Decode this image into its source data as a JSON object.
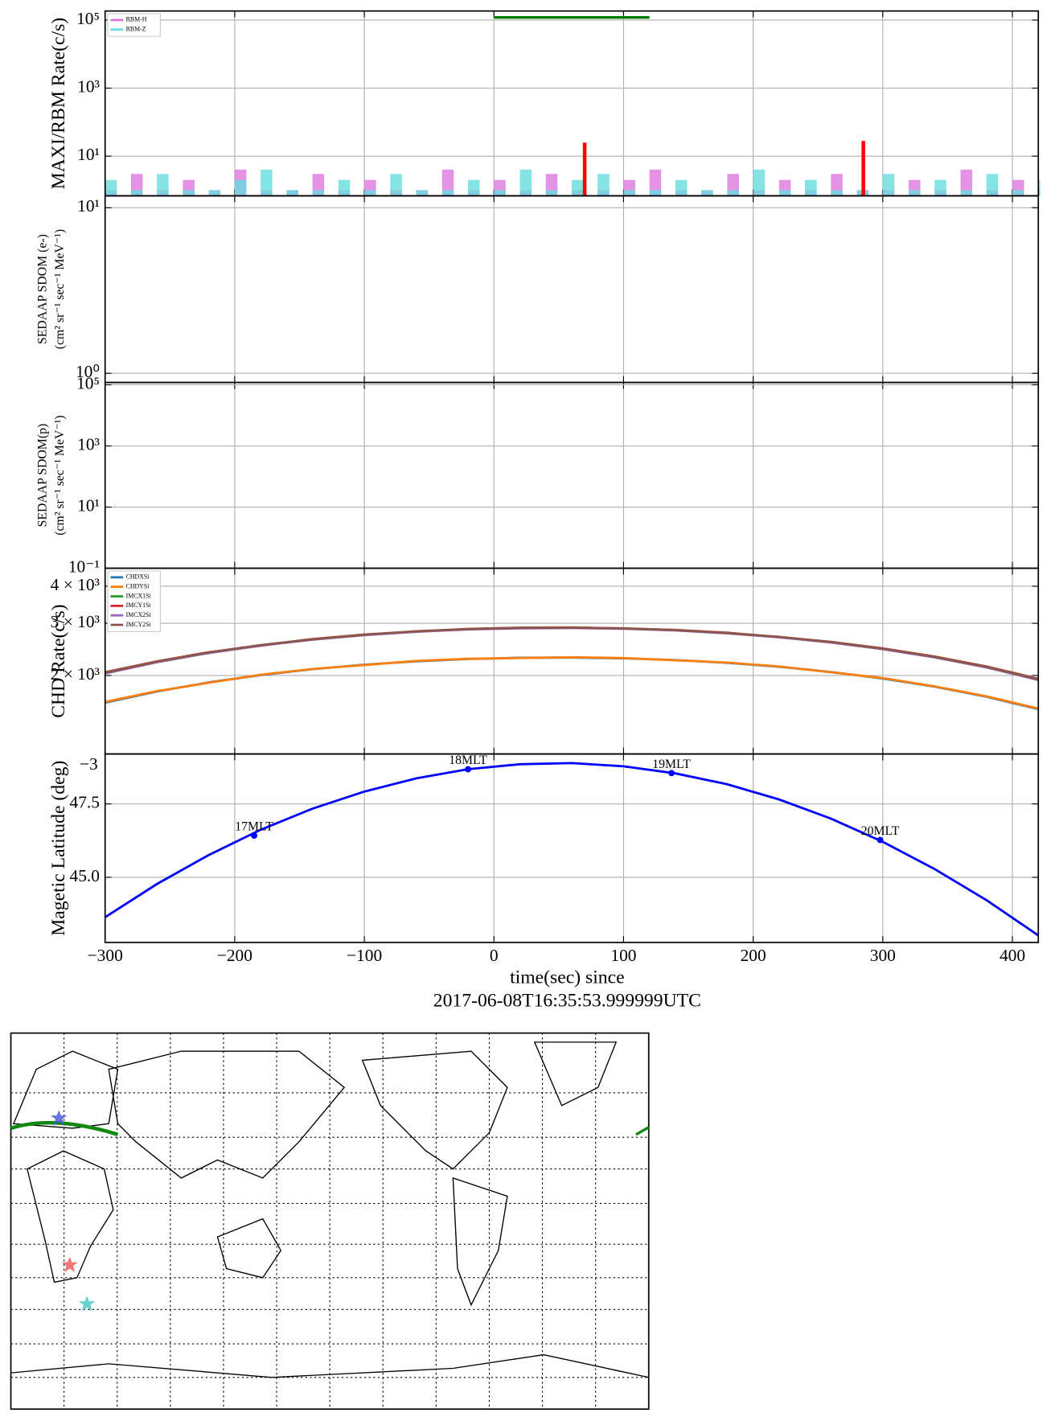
{
  "chart_data": [
    {
      "type": "step",
      "ylabel": "MAXI/RBM Rate(c/s)",
      "log_y": true,
      "ylim": [
        0.68,
        185000
      ],
      "yticks": [
        {
          "value": 10,
          "label": "10¹"
        },
        {
          "value": 1000,
          "label": "10³"
        },
        {
          "value": 100000,
          "label": "10⁵"
        }
      ],
      "xlim": [
        -300,
        420
      ],
      "xticks": [
        -300,
        -200,
        -100,
        0,
        100,
        200,
        300,
        400
      ],
      "grid": true,
      "legend": "upper left",
      "x": [
        -300,
        -280,
        -260,
        -240,
        -220,
        -200,
        -180,
        -160,
        -140,
        -120,
        -100,
        -80,
        -60,
        -40,
        -20,
        0,
        20,
        40,
        60,
        80,
        100,
        120,
        140,
        160,
        180,
        200,
        220,
        240,
        260,
        280,
        300,
        320,
        340,
        360,
        380,
        400,
        420
      ],
      "series": [
        {
          "name": "RBM-H",
          "color": "#dd77dd",
          "values": [
            1,
            3,
            1,
            2,
            1,
            4,
            1,
            1,
            3,
            1,
            2,
            1,
            1,
            4,
            1,
            2,
            1,
            3,
            1,
            1,
            2,
            4,
            1,
            1,
            3,
            1,
            2,
            1,
            3,
            1,
            1,
            2,
            1,
            4,
            1,
            2,
            1
          ]
        },
        {
          "name": "RBM-Z",
          "color": "#66dddd",
          "values": [
            2,
            1,
            3,
            1,
            1,
            2,
            4,
            1,
            1,
            2,
            1,
            3,
            1,
            1,
            2,
            1,
            4,
            1,
            2,
            3,
            1,
            1,
            2,
            1,
            1,
            4,
            1,
            2,
            1,
            1,
            3,
            1,
            2,
            1,
            3,
            1,
            2
          ]
        },
        {
          "color": "#ff0000",
          "style": "spike",
          "x": [
            70,
            285
          ],
          "values": [
            25,
            28
          ]
        },
        {
          "color": "#008000",
          "style": "line",
          "x": [
            0,
            120
          ],
          "values": [
            120000,
            120000
          ]
        }
      ]
    },
    {
      "type": "line",
      "ylabel": [
        "SEDAAP SDOM (e-)",
        "(cm² sr⁻¹ sec⁻¹ MeV⁻¹)"
      ],
      "log_y": true,
      "ylim": [
        0.88,
        11.8
      ],
      "yticks": [
        {
          "value": 1,
          "label": "10⁰"
        },
        {
          "value": 10,
          "label": "10¹"
        }
      ],
      "xlim": [
        -300,
        420
      ],
      "xticks": [
        -300,
        -200,
        -100,
        0,
        100,
        200,
        300,
        400
      ],
      "grid": true,
      "series": []
    },
    {
      "type": "line",
      "ylabel": [
        "SEDAAP SDOM(p)",
        "(cm² sr⁻¹ sec⁻¹ MeV⁻¹)"
      ],
      "log_y": true,
      "ylim": [
        0.1,
        119000
      ],
      "yticks": [
        {
          "value": 0.1,
          "label": "10⁻¹"
        },
        {
          "value": 10,
          "label": "10¹"
        },
        {
          "value": 1000,
          "label": "10³"
        },
        {
          "value": 100000,
          "label": "10⁵"
        }
      ],
      "xlim": [
        -300,
        420
      ],
      "xticks": [
        -300,
        -200,
        -100,
        0,
        100,
        200,
        300,
        400
      ],
      "grid": true,
      "series": []
    },
    {
      "type": "line",
      "ylabel": "CHD Rate(c/s)",
      "log_y": true,
      "ylim": [
        1087,
        4600
      ],
      "yticks": [
        {
          "value": 2000,
          "label": "2 × 10³"
        },
        {
          "value": 3000,
          "label": "3 × 10³"
        },
        {
          "value": 4000,
          "label": "4 × 10³"
        }
      ],
      "xlim": [
        -300,
        420
      ],
      "xticks": [
        -300,
        -200,
        -100,
        0,
        100,
        200,
        300,
        400
      ],
      "grid": true,
      "legend": "upper left",
      "x": [
        -300,
        -260,
        -220,
        -180,
        -140,
        -100,
        -60,
        -20,
        20,
        60,
        100,
        140,
        180,
        220,
        260,
        300,
        340,
        380,
        420
      ],
      "series": [
        {
          "name": "CHDXSi",
          "color": "#1f77b4",
          "values": [
            1620,
            1767,
            1895,
            2006,
            2100,
            2175,
            2233,
            2273,
            2295,
            2299,
            2286,
            2255,
            2206,
            2140,
            2055,
            1953,
            1833,
            1696,
            1540
          ]
        },
        {
          "name": "CHDYSi",
          "color": "#ff7f0e",
          "values": [
            1628,
            1771,
            1890,
            2012,
            2104,
            2170,
            2240,
            2278,
            2290,
            2305,
            2290,
            2250,
            2211,
            2145,
            2050,
            1960,
            1838,
            1701,
            1546
          ]
        },
        {
          "name": "IMCX1Si",
          "color": "#2ca02c",
          "values": [
            2040,
            2225,
            2388,
            2529,
            2647,
            2742,
            2815,
            2866,
            2894,
            2899,
            2882,
            2843,
            2781,
            2697,
            2590,
            2461,
            2310,
            2136,
            1939
          ]
        },
        {
          "name": "IMCY1Si",
          "color": "#d62728",
          "values": [
            2052,
            2231,
            2395,
            2520,
            2655,
            2750,
            2808,
            2872,
            2900,
            2905,
            2876,
            2850,
            2788,
            2690,
            2598,
            2468,
            2318,
            2145,
            1950
          ]
        },
        {
          "name": "IMCX2Si",
          "color": "#9467bd",
          "values": [
            2030,
            2218,
            2380,
            2522,
            2640,
            2735,
            2808,
            2858,
            2885,
            2892,
            2874,
            2836,
            2773,
            2690,
            2583,
            2454,
            2302,
            2128,
            1930
          ]
        },
        {
          "name": "IMCY2Si",
          "color": "#8c564b",
          "values": [
            2045,
            2228,
            2392,
            2533,
            2650,
            2746,
            2820,
            2869,
            2897,
            2902,
            2885,
            2846,
            2784,
            2700,
            2594,
            2465,
            2313,
            2140,
            1944
          ]
        }
      ]
    },
    {
      "type": "line",
      "ylabel": "Magetic Latitude  (deg)",
      "ylim": [
        42.78,
        49.2
      ],
      "yticks": [
        {
          "value": 45,
          "label": "45.0"
        },
        47.5
      ],
      "offset_text": "−3",
      "xlim": [
        -300,
        420
      ],
      "xticks": [
        {
          "value": -300,
          "label": "−300"
        },
        {
          "value": -200,
          "label": "−200"
        },
        {
          "value": -100,
          "label": "−100"
        },
        0,
        100,
        200,
        300,
        400
      ],
      "grid": true,
      "xlabel": [
        "time(sec) since",
        "2017-06-08T16:35:53.999999UTC"
      ],
      "x": [
        -300,
        -260,
        -220,
        -180,
        -140,
        -100,
        -60,
        -20,
        20,
        60,
        100,
        140,
        180,
        220,
        260,
        300,
        340,
        380,
        420
      ],
      "series": [
        {
          "color": "#0000ff",
          "values": [
            43.64,
            44.77,
            45.76,
            46.62,
            47.34,
            47.92,
            48.37,
            48.68,
            48.85,
            48.89,
            48.78,
            48.54,
            48.17,
            47.65,
            47.0,
            46.21,
            45.28,
            44.22,
            43.02
          ]
        }
      ],
      "points": [
        {
          "label": "17MLT",
          "x": -185,
          "y": 46.42
        },
        {
          "label": "18MLT",
          "x": -20,
          "y": 48.68
        },
        {
          "label": "19MLT",
          "x": 137,
          "y": 48.55
        },
        {
          "label": "20MLT",
          "x": 298,
          "y": 46.27
        }
      ]
    }
  ]
}
